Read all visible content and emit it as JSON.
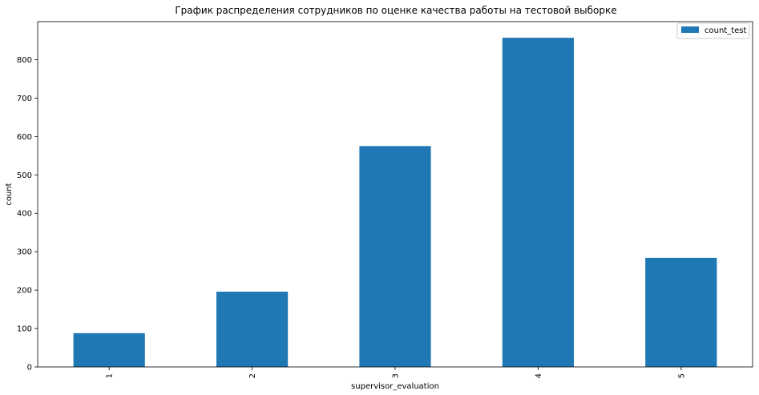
{
  "chart_data": {
    "type": "bar",
    "title": "График распределения сотрудников по оценке качества работы на тестовой выборке",
    "xlabel": "supervisor_evaluation",
    "ylabel": "count",
    "categories": [
      "1",
      "2",
      "3",
      "4",
      "5"
    ],
    "series": [
      {
        "name": "count_test",
        "values": [
          88,
          196,
          575,
          857,
          284
        ],
        "color": "#1f77b4"
      }
    ],
    "ylim": [
      0,
      899
    ],
    "yticks": [
      0,
      100,
      200,
      300,
      400,
      500,
      600,
      700,
      800
    ],
    "legend_position": "top-right",
    "grid": false
  }
}
